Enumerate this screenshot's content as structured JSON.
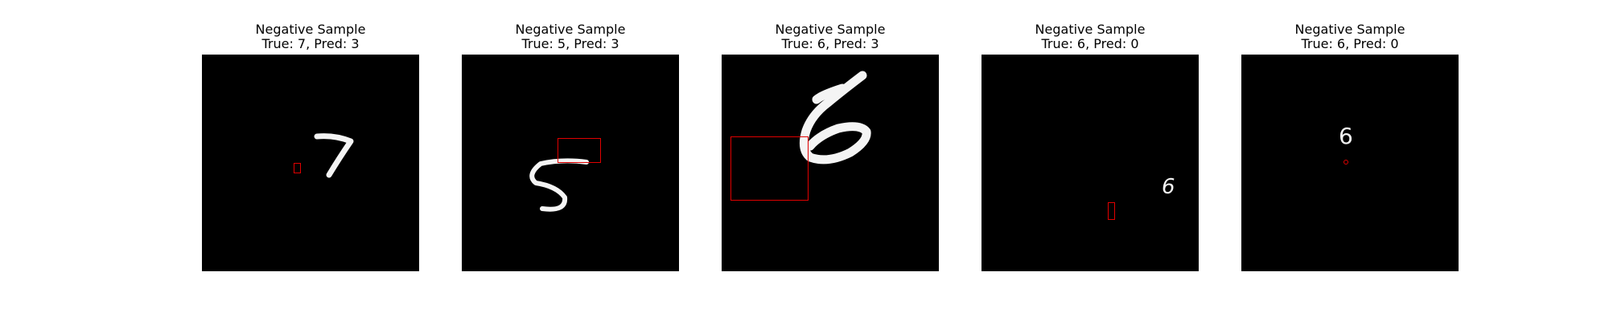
{
  "chart_data": {
    "type": "image-grid",
    "panels": [
      {
        "title": "Negative Sample",
        "subtitle": "True: 7, Pred: 3",
        "true_label": 7,
        "pred_label": 3,
        "digit": "7"
      },
      {
        "title": "Negative Sample",
        "subtitle": "True: 5, Pred: 3",
        "true_label": 5,
        "pred_label": 3,
        "digit": "5"
      },
      {
        "title": "Negative Sample",
        "subtitle": "True: 6, Pred: 3",
        "true_label": 6,
        "pred_label": 3,
        "digit": "6"
      },
      {
        "title": "Negative Sample",
        "subtitle": "True: 6, Pred: 0",
        "true_label": 6,
        "pred_label": 0,
        "digit": "6"
      },
      {
        "title": "Negative Sample",
        "subtitle": "True: 6, Pred: 0",
        "true_label": 6,
        "pred_label": 0,
        "digit": "6"
      }
    ],
    "colors": {
      "image_background": "#000000",
      "digit": "#f4f4f4",
      "box": "#e00000"
    }
  }
}
